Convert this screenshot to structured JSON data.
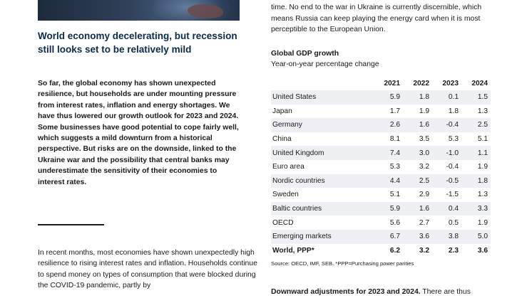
{
  "left": {
    "headline": "World economy decelerating, but recession still looks set to be relatively mild",
    "lead": "So far, the global economy has shown unexpected resilience, but households are under mounting pressure from interest rates, inflation and energy shortages. We have thus lowered our growth outlook for 2023 and 2024. Some businesses have good potential to cope fairly well, which suggests a mild downturn from a historical perspective. But risks are on the downside, linked to the Ukraine war and the possibility that central banks may underestimate the sensitivity of their economies to interest rates.",
    "body": "In recent months, most economies have shown unexpectedly high resilience to rising interest rates and inflation. Households continue to spend money on types of consumption that were blocked during the COVID-19 pandemic, partly by"
  },
  "right": {
    "top_text": "likely to rise again this winter and remain at high levels for quite some time. No end to the war in Ukraine is currently discernible, which means Russia can keep playing the energy card when it is most perceptible to the European Union.",
    "table_title": "Global GDP growth",
    "table_subtitle": "Year-on-year percentage change",
    "headers": [
      "",
      "2021",
      "2022",
      "2023",
      "2024"
    ],
    "rows": [
      {
        "country": "United States",
        "v": [
          "5.9",
          "1.8",
          "0.1",
          "1.5"
        ]
      },
      {
        "country": "Japan",
        "v": [
          "1.7",
          "1.9",
          "1.8",
          "1.3"
        ]
      },
      {
        "country": "Germany",
        "v": [
          "2.6",
          "1.6",
          "-0.4",
          "2.5"
        ]
      },
      {
        "country": "China",
        "v": [
          "8.1",
          "3.5",
          "5.3",
          "5.1"
        ]
      },
      {
        "country": "United Kingdom",
        "v": [
          "7.4",
          "3.0",
          "-1.0",
          "1.1"
        ]
      },
      {
        "country": "Euro area",
        "v": [
          "5.3",
          "3.2",
          "-0.4",
          "1.9"
        ]
      },
      {
        "country": "Nordic countries",
        "v": [
          "4.4",
          "2.5",
          "-0.5",
          "1.8"
        ]
      },
      {
        "country": "Sweden",
        "v": [
          "5.1",
          "2.9",
          "-1.5",
          "1.3"
        ]
      },
      {
        "country": "Baltic countries",
        "v": [
          "5.9",
          "1.6",
          "0.4",
          "3.3"
        ]
      },
      {
        "country": "OECD",
        "v": [
          "5.6",
          "2.7",
          "0.5",
          "1.9"
        ]
      },
      {
        "country": "Emerging markets",
        "v": [
          "6.7",
          "3.6",
          "3.8",
          "5.0"
        ]
      },
      {
        "country": "World, PPP*",
        "v": [
          "6.2",
          "3.2",
          "2.3",
          "3.6"
        ]
      }
    ],
    "source": "Source: OECD, IMF, SEB. *PPP=Purchasing power parities",
    "body_bold": "Downward adjustments for 2023 and 2024.",
    "body_rest": " There are thus"
  }
}
